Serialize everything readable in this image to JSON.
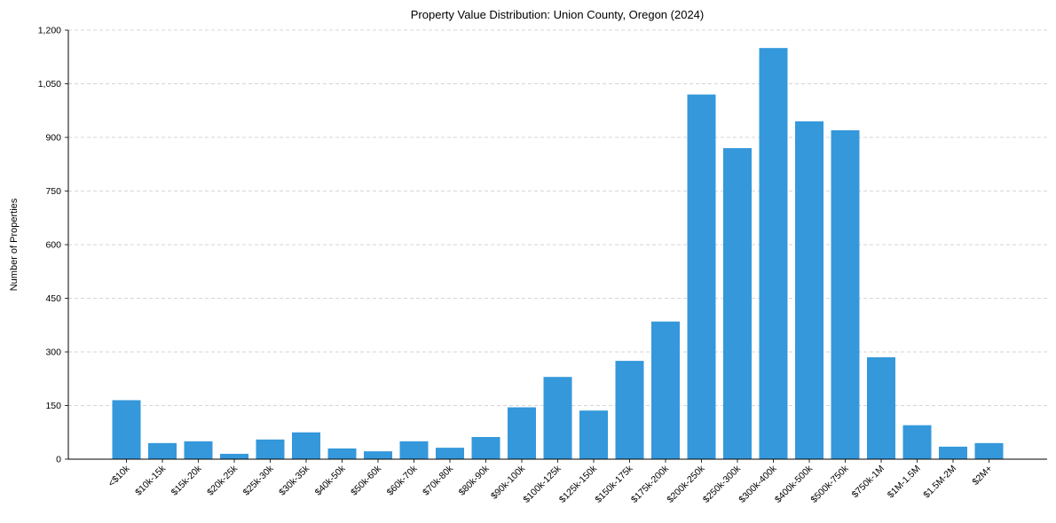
{
  "chart_data": {
    "type": "bar",
    "title": "Property Value Distribution: Union County, Oregon (2024)",
    "xlabel": "",
    "ylabel": "Number of Properties",
    "ylim": [
      0,
      1200
    ],
    "yticks": [
      0,
      150,
      300,
      450,
      600,
      750,
      900,
      1050,
      1200
    ],
    "ytick_labels": [
      "0",
      "150",
      "300",
      "450",
      "600",
      "750",
      "900",
      "1,050",
      "1,200"
    ],
    "grid": "horizontal dashed",
    "color": "#3498db",
    "categories": [
      "<$10k",
      "$10k-15k",
      "$15k-20k",
      "$20k-25k",
      "$25k-30k",
      "$30k-35k",
      "$40k-50k",
      "$50k-60k",
      "$60k-70k",
      "$70k-80k",
      "$80k-90k",
      "$90k-100k",
      "$100k-125k",
      "$125k-150k",
      "$150k-175k",
      "$175k-200k",
      "$200k-250k",
      "$250k-300k",
      "$300k-400k",
      "$400k-500k",
      "$500k-750k",
      "$750k-1M",
      "$1M-1.5M",
      "$1.5M-2M",
      "$2M+"
    ],
    "values": [
      165,
      45,
      50,
      15,
      55,
      75,
      30,
      22,
      50,
      32,
      62,
      145,
      230,
      136,
      275,
      385,
      1020,
      870,
      1150,
      945,
      920,
      285,
      95,
      35,
      45
    ]
  }
}
